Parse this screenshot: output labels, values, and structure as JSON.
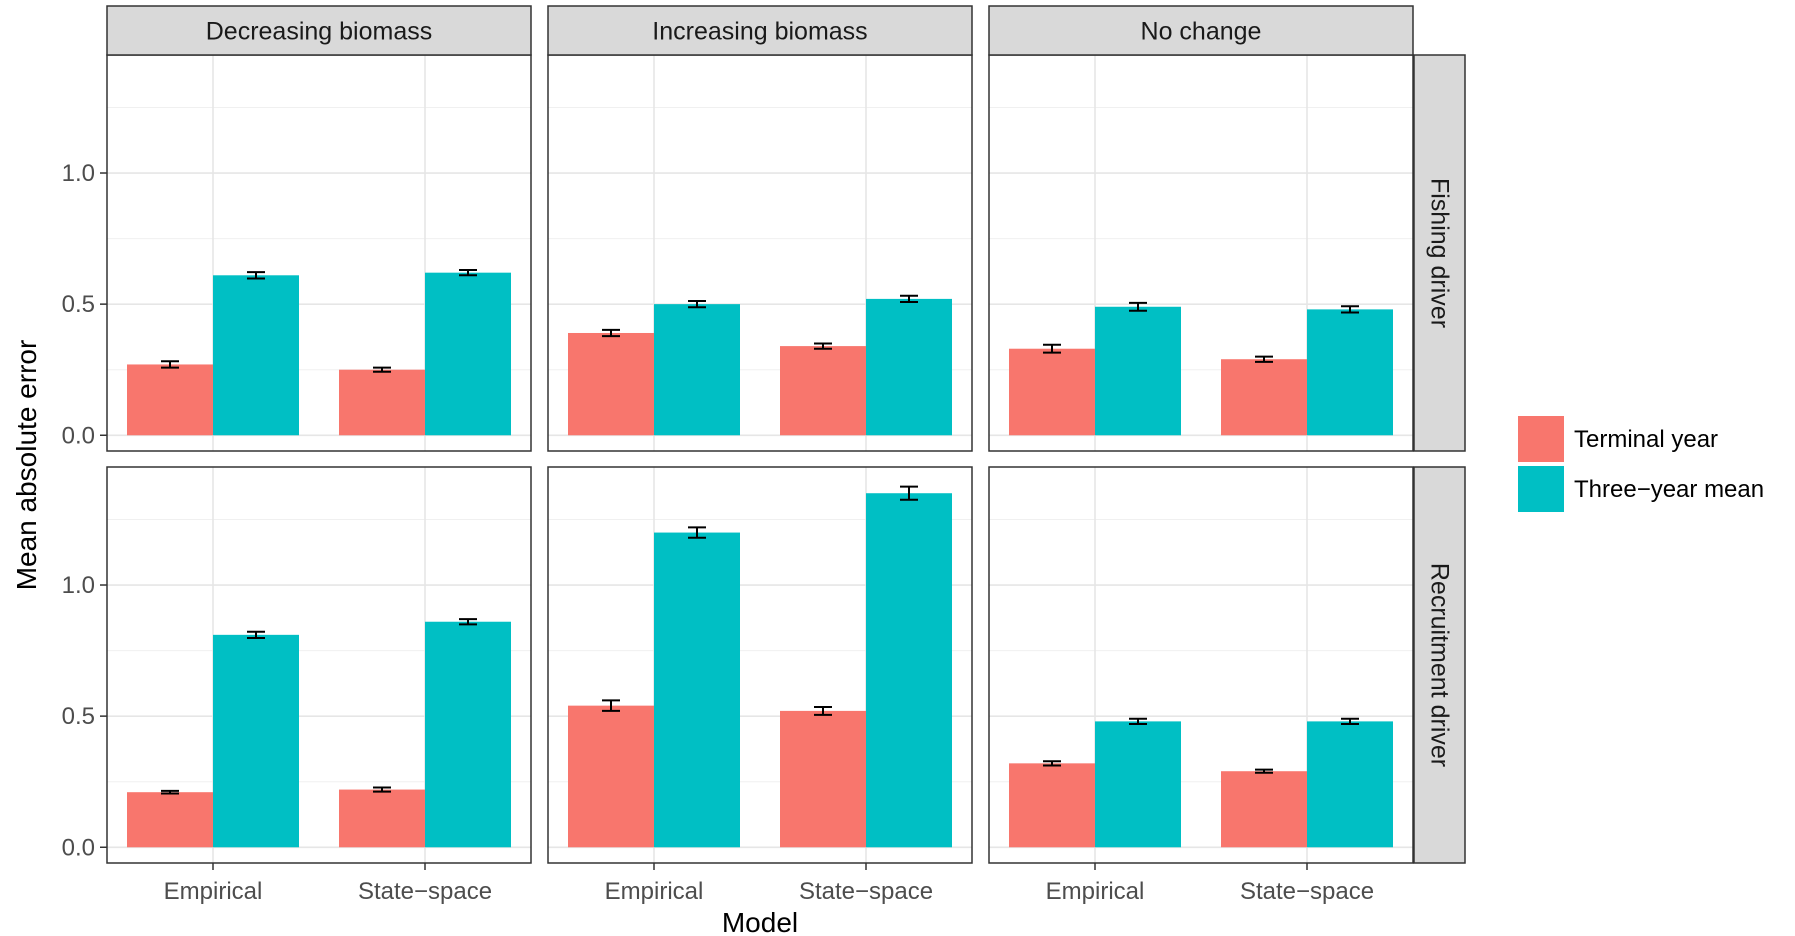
{
  "chart_data": {
    "type": "bar",
    "facet_columns": [
      "Decreasing biomass",
      "Increasing biomass",
      "No change"
    ],
    "facet_rows": [
      "Fishing driver",
      "Recruitment driver"
    ],
    "categories": [
      "Empirical",
      "State−space"
    ],
    "xlabel": "Model",
    "ylabel": "Mean absolute error",
    "ylim": [
      -0.06,
      1.45
    ],
    "yticks": [
      0.0,
      0.5,
      1.0
    ],
    "ytick_labels": [
      "0.0",
      "0.5",
      "1.0"
    ],
    "grid": true,
    "legend_position": "right",
    "series": [
      {
        "name": "Terminal year",
        "color": "#F8766D"
      },
      {
        "name": "Three−year mean",
        "color": "#00BFC4"
      }
    ],
    "panels": [
      {
        "row": "Fishing driver",
        "column": "Decreasing biomass",
        "values": {
          "Terminal year": [
            0.27,
            0.25
          ],
          "Three−year mean": [
            0.61,
            0.62
          ]
        },
        "errors": {
          "Terminal year": [
            0.012,
            0.008
          ],
          "Three−year mean": [
            0.012,
            0.01
          ]
        }
      },
      {
        "row": "Fishing driver",
        "column": "Increasing biomass",
        "values": {
          "Terminal year": [
            0.39,
            0.34
          ],
          "Three−year mean": [
            0.5,
            0.52
          ]
        },
        "errors": {
          "Terminal year": [
            0.012,
            0.01
          ],
          "Three−year mean": [
            0.012,
            0.012
          ]
        }
      },
      {
        "row": "Fishing driver",
        "column": "No change",
        "values": {
          "Terminal year": [
            0.33,
            0.29
          ],
          "Three−year mean": [
            0.49,
            0.48
          ]
        },
        "errors": {
          "Terminal year": [
            0.015,
            0.01
          ],
          "Three−year mean": [
            0.015,
            0.012
          ]
        }
      },
      {
        "row": "Recruitment driver",
        "column": "Decreasing biomass",
        "values": {
          "Terminal year": [
            0.21,
            0.22
          ],
          "Three−year mean": [
            0.81,
            0.86
          ]
        },
        "errors": {
          "Terminal year": [
            0.005,
            0.008
          ],
          "Three−year mean": [
            0.012,
            0.01
          ]
        }
      },
      {
        "row": "Recruitment driver",
        "column": "Increasing biomass",
        "values": {
          "Terminal year": [
            0.54,
            0.52
          ],
          "Three−year mean": [
            1.2,
            1.35
          ]
        },
        "errors": {
          "Terminal year": [
            0.02,
            0.015
          ],
          "Three−year mean": [
            0.02,
            0.025
          ]
        }
      },
      {
        "row": "Recruitment driver",
        "column": "No change",
        "values": {
          "Terminal year": [
            0.32,
            0.29
          ],
          "Three−year mean": [
            0.48,
            0.48
          ]
        },
        "errors": {
          "Terminal year": [
            0.008,
            0.006
          ],
          "Three−year mean": [
            0.01,
            0.01
          ]
        }
      }
    ]
  }
}
